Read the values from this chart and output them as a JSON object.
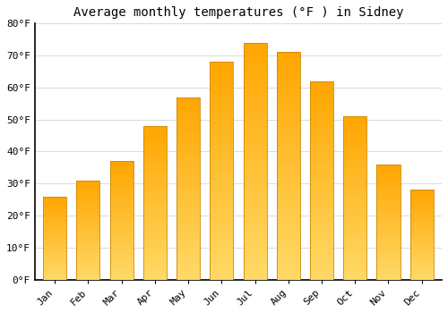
{
  "title": "Average monthly temperatures (°F ) in Sidney",
  "months": [
    "Jan",
    "Feb",
    "Mar",
    "Apr",
    "May",
    "Jun",
    "Jul",
    "Aug",
    "Sep",
    "Oct",
    "Nov",
    "Dec"
  ],
  "values": [
    26,
    31,
    37,
    48,
    57,
    68,
    74,
    71,
    62,
    51,
    36,
    28
  ],
  "bar_color_light": "#FFD966",
  "bar_color_dark": "#FFA500",
  "bar_edge_color": "#CC8800",
  "ylim": [
    0,
    80
  ],
  "yticks": [
    0,
    10,
    20,
    30,
    40,
    50,
    60,
    70,
    80
  ],
  "ytick_labels": [
    "0°F",
    "10°F",
    "20°F",
    "30°F",
    "40°F",
    "50°F",
    "60°F",
    "70°F",
    "80°F"
  ],
  "background_color": "#FFFFFF",
  "grid_color": "#DDDDDD",
  "title_fontsize": 10,
  "tick_fontsize": 8,
  "font_family": "monospace",
  "bar_width": 0.7,
  "figsize": [
    5.0,
    3.5
  ],
  "dpi": 100
}
